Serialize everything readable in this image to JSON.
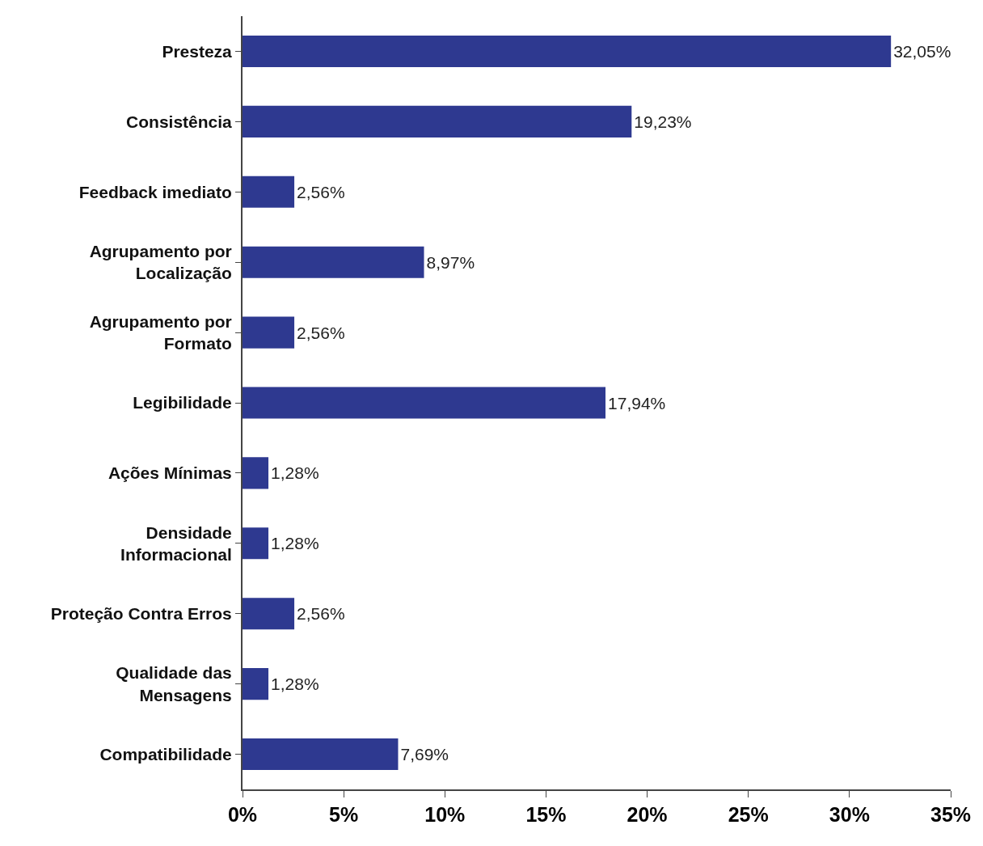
{
  "chart_data": {
    "type": "bar",
    "orientation": "horizontal",
    "categories": [
      "Presteza",
      "Consistência",
      "Feedback imediato",
      "Agrupamento por Localização",
      "Agrupamento por Formato",
      "Legibilidade",
      "Ações Mínimas",
      "Densidade Informacional",
      "Proteção Contra Erros",
      "Qualidade das Mensagens",
      "Compatibilidade"
    ],
    "values": [
      32.05,
      19.23,
      2.56,
      8.97,
      2.56,
      17.94,
      1.28,
      1.28,
      2.56,
      1.28,
      7.69
    ],
    "value_labels": [
      "32,05%",
      "19,23%",
      "2,56%",
      "8,97%",
      "2,56%",
      "17,94%",
      "1,28%",
      "1,28%",
      "2,56%",
      "1,28%",
      "7,69%"
    ],
    "color": "#2e3990",
    "xlim": [
      0,
      35
    ],
    "xticks": [
      {
        "value": 0,
        "label": "0%"
      },
      {
        "value": 5,
        "label": "5%"
      },
      {
        "value": 10,
        "label": "10%"
      },
      {
        "value": 15,
        "label": "15%"
      },
      {
        "value": 20,
        "label": "20%"
      },
      {
        "value": 25,
        "label": "25%"
      },
      {
        "value": 30,
        "label": "30%"
      },
      {
        "value": 35,
        "label": "35%"
      }
    ],
    "grid": false
  }
}
